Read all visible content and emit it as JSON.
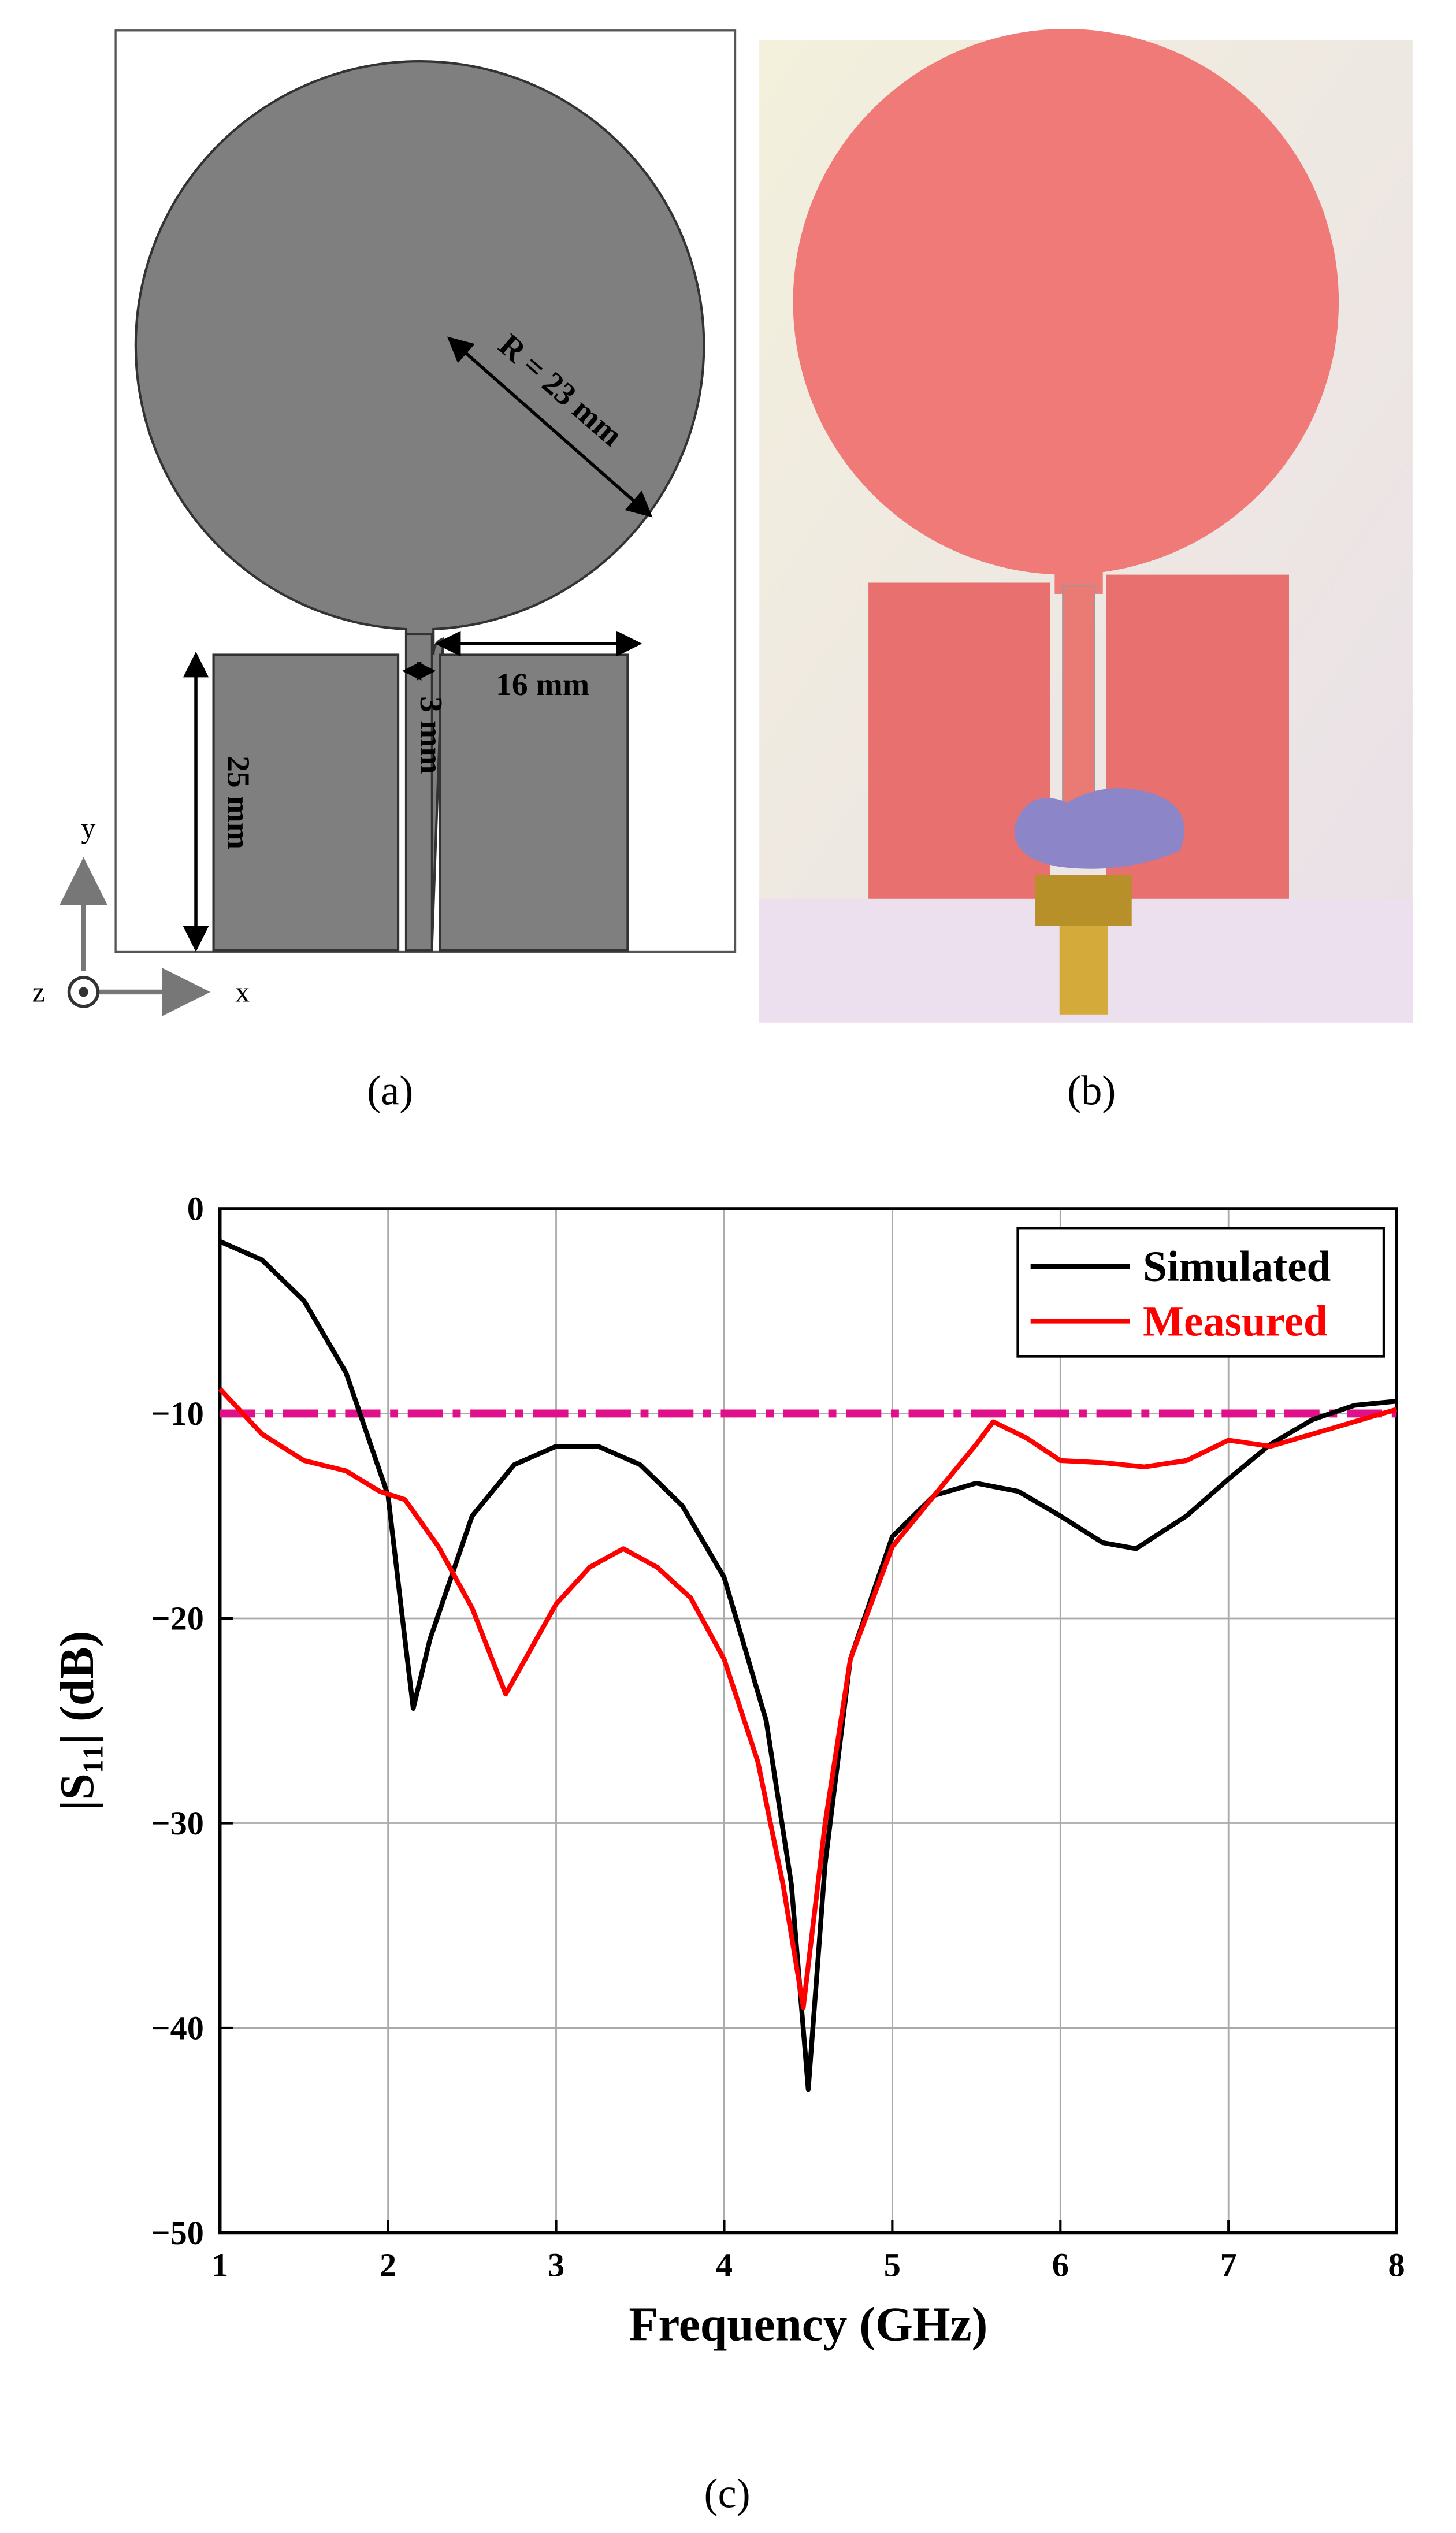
{
  "figure": {
    "panel_a": {
      "label": "(a)",
      "radius": "R = 23 mm",
      "width": "16 mm",
      "gap": "3 mm",
      "height": "25 mm",
      "axis_x": "x",
      "axis_y": "y",
      "axis_z": "z"
    },
    "panel_b": {
      "label": "(b)"
    },
    "panel_c": {
      "label": "(c)"
    }
  },
  "chart_data": {
    "type": "line",
    "xlabel": "Frequency (GHz)",
    "ylabel": "|S₁₁| (dB)",
    "xlim": [
      1,
      8
    ],
    "xticks": [
      1,
      2,
      3,
      4,
      5,
      6,
      7,
      8
    ],
    "ylim": [
      -50,
      0
    ],
    "yticks": [
      {
        "value": -50,
        "label": "−50"
      },
      {
        "value": -40,
        "label": "−40"
      },
      {
        "value": -30,
        "label": "−30"
      },
      {
        "value": -20,
        "label": "−20"
      },
      {
        "value": -10,
        "label": "−10"
      },
      0
    ],
    "grid": true,
    "legend": "upper right",
    "reference_line": {
      "value": -10,
      "color": "#e0108a"
    },
    "series": [
      {
        "name": "Simulated",
        "color": "#000000",
        "x": [
          1.0,
          1.25,
          1.5,
          1.75,
          2.0,
          2.1,
          2.15,
          2.25,
          2.5,
          2.75,
          3.0,
          3.25,
          3.5,
          3.75,
          4.0,
          4.25,
          4.4,
          4.5,
          4.6,
          4.75,
          5.0,
          5.25,
          5.5,
          5.75,
          6.0,
          6.25,
          6.45,
          6.75,
          7.0,
          7.25,
          7.5,
          7.75,
          8.0
        ],
        "values": [
          -1.6,
          -2.5,
          -4.5,
          -8,
          -14,
          -21,
          -24.4,
          -21,
          -15,
          -12.5,
          -11.6,
          -11.6,
          -12.5,
          -14.5,
          -18,
          -25,
          -33,
          -43,
          -32,
          -22,
          -16,
          -14,
          -13.4,
          -13.8,
          -15,
          -16.3,
          -16.6,
          -15,
          -13.2,
          -11.5,
          -10.3,
          -9.6,
          -9.4
        ]
      },
      {
        "name": "Measured",
        "color": "#ff0000",
        "x": [
          1.0,
          1.25,
          1.5,
          1.75,
          1.95,
          2.1,
          2.3,
          2.5,
          2.7,
          2.85,
          3.0,
          3.2,
          3.4,
          3.6,
          3.8,
          4.0,
          4.2,
          4.35,
          4.47,
          4.6,
          4.75,
          5.0,
          5.25,
          5.5,
          5.6,
          5.8,
          6.0,
          6.25,
          6.5,
          6.75,
          7.0,
          7.25,
          7.5,
          7.75,
          8.0
        ],
        "values": [
          -8.8,
          -11,
          -12.3,
          -12.8,
          -13.8,
          -14.2,
          -16.5,
          -19.5,
          -23.7,
          -21.5,
          -19.3,
          -17.5,
          -16.6,
          -17.5,
          -19,
          -22,
          -27,
          -33,
          -39,
          -30,
          -22,
          -16.5,
          -14,
          -11.5,
          -10.4,
          -11.2,
          -12.3,
          -12.4,
          -12.6,
          -12.3,
          -11.3,
          -11.6,
          -11,
          -10.4,
          -9.8
        ]
      }
    ]
  }
}
